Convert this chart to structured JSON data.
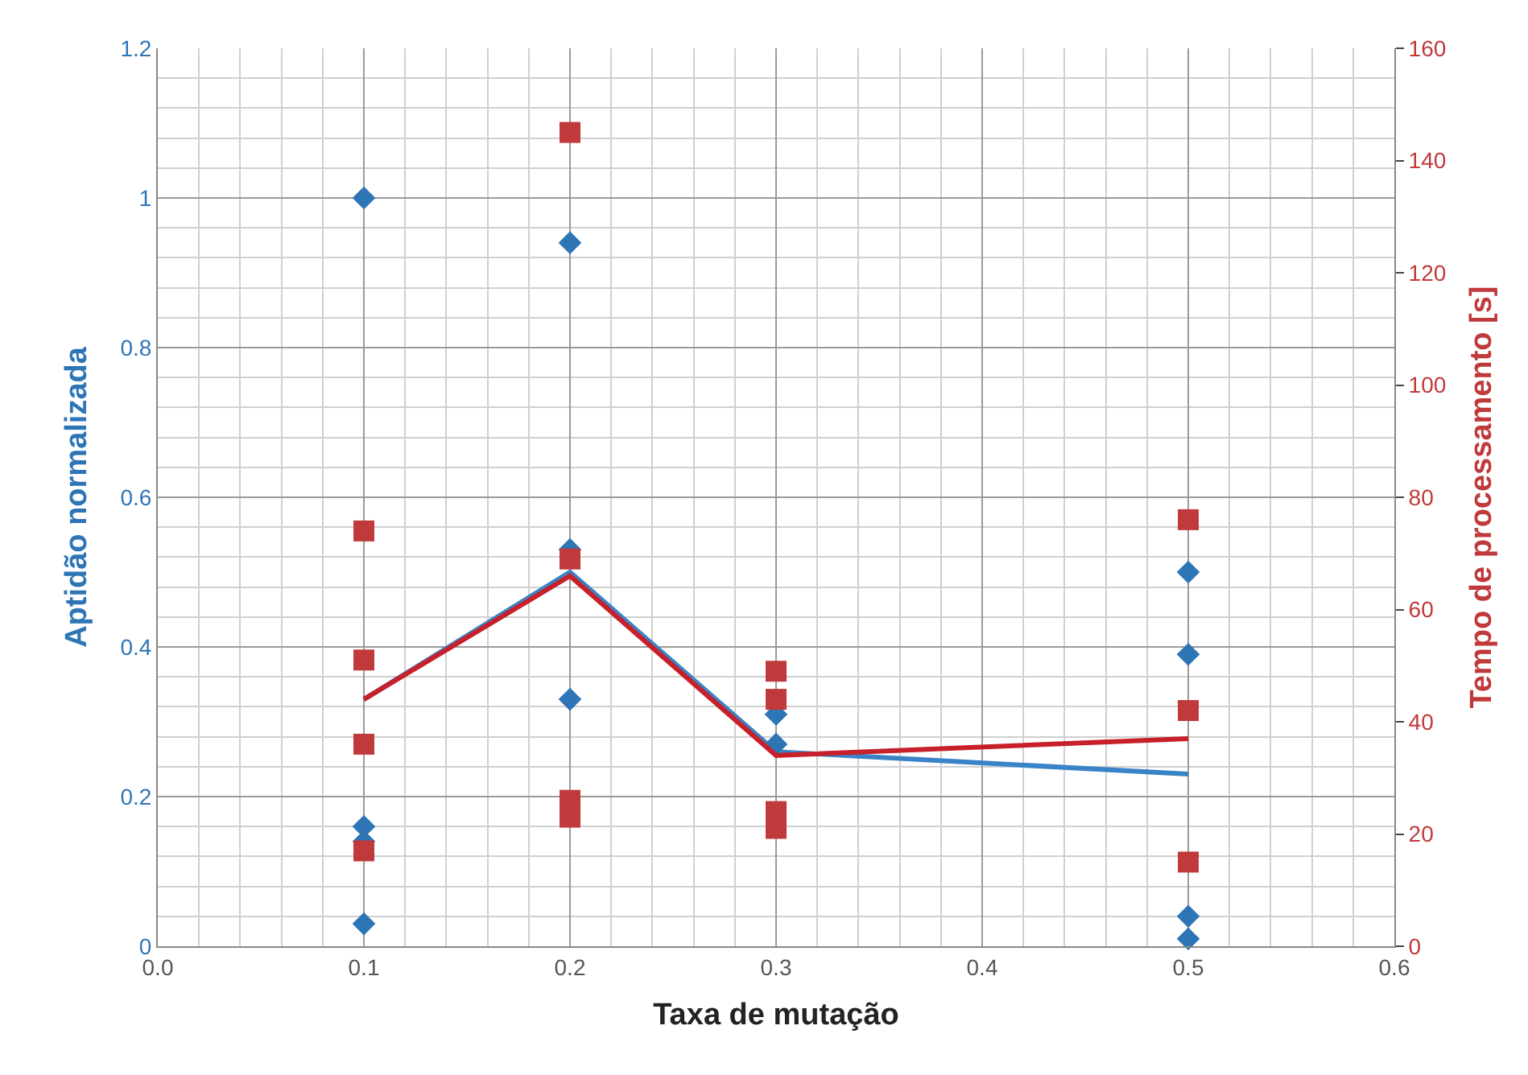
{
  "chart_data": {
    "type": "scatter",
    "xlabel": "Taxa de mutação",
    "ylabel": "Aptidão normalizada",
    "y2label": "Tempo de processamento [s]",
    "xlim": [
      0,
      0.6
    ],
    "xticks": [
      {
        "value": 0,
        "label": "0.0"
      },
      {
        "value": 0.1,
        "label": "0.1"
      },
      {
        "value": 0.2,
        "label": "0.2"
      },
      {
        "value": 0.3,
        "label": "0.3"
      },
      {
        "value": 0.4,
        "label": "0.4"
      },
      {
        "value": 0.5,
        "label": "0.5"
      },
      {
        "value": 0.6,
        "label": "0.6"
      }
    ],
    "ylim": [
      0,
      1.2
    ],
    "yticks": [
      0,
      0.2,
      0.4,
      0.6,
      0.8,
      1,
      1.2
    ],
    "y2lim": [
      0,
      160
    ],
    "y2ticks": [
      0,
      20,
      40,
      60,
      80,
      100,
      120,
      140,
      160
    ],
    "grid": true,
    "series": [
      {
        "marker": "diamond",
        "color": "#2e75b6",
        "x": [
          0.1,
          0.1,
          0.1,
          0.1,
          0.2,
          0.2,
          0.2,
          0.3,
          0.3,
          0.5,
          0.5,
          0.5,
          0.5
        ],
        "values": [
          1.0,
          0.16,
          0.14,
          0.03,
          0.94,
          0.53,
          0.33,
          0.31,
          0.27,
          0.5,
          0.39,
          0.04,
          0.01
        ]
      },
      {
        "marker": "square",
        "color": "#c0393b",
        "axis": "y2",
        "x": [
          0.1,
          0.1,
          0.1,
          0.1,
          0.2,
          0.2,
          0.2,
          0.2,
          0.3,
          0.3,
          0.3,
          0.3,
          0.5,
          0.5,
          0.5
        ],
        "values": [
          74,
          51,
          36,
          17,
          145,
          69,
          26,
          23,
          49,
          44,
          24,
          21,
          76,
          42,
          15
        ]
      },
      {
        "type": "line",
        "marker": "none",
        "color": "#3a83c6",
        "x": [
          0.1,
          0.2,
          0.3,
          0.5
        ],
        "values": [
          0.33,
          0.5,
          0.26,
          0.23
        ]
      },
      {
        "type": "line",
        "marker": "none",
        "color": "#c8202a",
        "axis": "y2",
        "x": [
          0.1,
          0.2,
          0.3,
          0.5
        ],
        "values": [
          44,
          66,
          34,
          37
        ]
      }
    ]
  }
}
